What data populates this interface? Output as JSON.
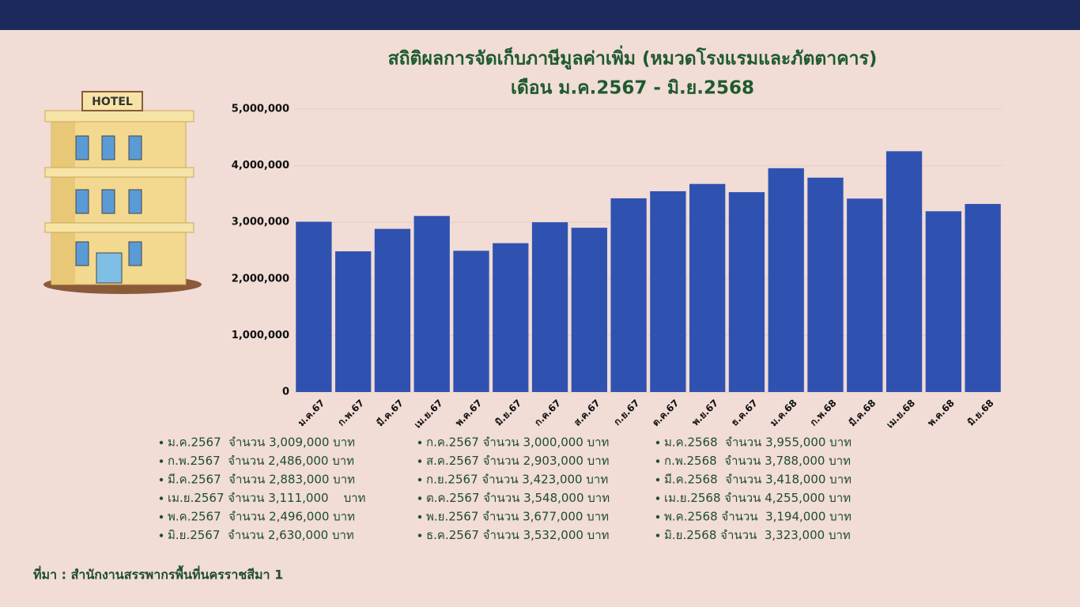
{
  "chart_data": {
    "type": "bar",
    "title": "สถิติผลการจัดเก็บภาษีมูลค่าเพิ่ม (หมวดโรงแรมและภัตตาคาร)",
    "subtitle": "เดือน ม.ค.2567 - มิ.ย.2568",
    "categories": [
      "ม.ค.67",
      "ก.พ.67",
      "มี.ค.67",
      "เม.ย.67",
      "พ.ค.67",
      "มิ.ย.67",
      "ก.ค.67",
      "ส.ค.67",
      "ก.ย.67",
      "ต.ค.67",
      "พ.ย.67",
      "ธ.ค.67",
      "ม.ค.68",
      "ก.พ.68",
      "มี.ค.68",
      "เม.ย.68",
      "พ.ค.68",
      "มิ.ย.68"
    ],
    "values": [
      3009000,
      2486000,
      2883000,
      3111000,
      2496000,
      2630000,
      3000000,
      2903000,
      3423000,
      3548000,
      3677000,
      3532000,
      3955000,
      3788000,
      3418000,
      4255000,
      3194000,
      3323000
    ],
    "color": "#2f52b0",
    "ylim": [
      0,
      5000000
    ],
    "yticks": [
      0,
      {
        "value": 1000000,
        "label": "1,000,000"
      },
      {
        "value": 2000000,
        "label": "2,000,000"
      },
      {
        "value": 3000000,
        "label": "3,000,000"
      },
      {
        "value": 4000000,
        "label": "4,000,000"
      },
      {
        "value": 5000000,
        "label": "5,000,000"
      }
    ],
    "grid": true
  },
  "summary": {
    "columns": [
      [
        "ม.ค.2567  จำนวน 3,009,000 บาท",
        "ก.พ.2567  จำนวน 2,486,000 บาท",
        "มี.ค.2567  จำนวน 2,883,000 บาท",
        "เม.ย.2567 จำนวน 3,111,000    บาท",
        "พ.ค.2567  จำนวน 2,496,000 บาท",
        "มิ.ย.2567  จำนวน 2,630,000 บาท"
      ],
      [
        "ก.ค.2567 จำนวน 3,000,000 บาท",
        "ส.ค.2567 จำนวน 2,903,000 บาท",
        "ก.ย.2567 จำนวน 3,423,000 บาท",
        "ต.ค.2567 จำนวน 3,548,000 บาท",
        "พ.ย.2567 จำนวน 3,677,000 บาท",
        "ธ.ค.2567 จำนวน 3,532,000 บาท"
      ],
      [
        "ม.ค.2568  จำนวน 3,955,000 บาท",
        "ก.พ.2568  จำนวน 3,788,000 บาท",
        "มี.ค.2568  จำนวน 3,418,000 บาท",
        "เม.ย.2568 จำนวน 4,255,000 บาท",
        "พ.ค.2568 จำนวน  3,194,000 บาท",
        "มิ.ย.2568 จำนวน  3,323,000 บาท"
      ]
    ]
  },
  "source": "ที่มา : สำนักงานสรรพากรพื้นที่นครราชสีมา 1",
  "illustration": {
    "sign": "HOTEL"
  }
}
